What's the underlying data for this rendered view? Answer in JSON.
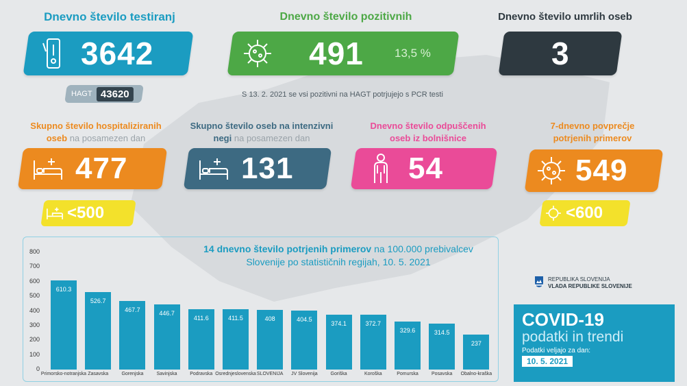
{
  "colors": {
    "blue": "#1b9cc1",
    "green": "#4da846",
    "dark": "#2e3940",
    "orange": "#ec8a1f",
    "slate": "#3d6a82",
    "pink": "#ea4b98",
    "yellow": "#f3e12b",
    "grey_pill": "#9fb2bd"
  },
  "testing": {
    "title": "Dnevno število testiranj",
    "value": "3642",
    "hagt_label": "HAGT",
    "hagt_value": "43620",
    "icon": "test-tube-icon"
  },
  "positive": {
    "title": "Dnevno število pozitivnih",
    "value": "491",
    "percent": "13,5 %",
    "icon": "virus-icon",
    "note": "S 13. 2. 2021 se vsi pozitivni na HAGT potrjujejo s PCR testi"
  },
  "deaths": {
    "title": "Dnevno število umrlih oseb",
    "value": "3"
  },
  "hospitalized": {
    "title_bold": "Skupno število hospitaliziranih oseb",
    "title_light": "na posamezen dan",
    "value": "477",
    "threshold": "<500",
    "icon": "hospital-bed-icon"
  },
  "icu": {
    "title_bold": "Skupno število oseb na intenzivni negi",
    "title_light": "na posamezen dan",
    "value": "131",
    "icon": "hospital-bed-icon"
  },
  "discharged": {
    "title": "Dnevno število odpuščenih oseb iz bolnišnice",
    "value": "54",
    "icon": "person-icon"
  },
  "avg7": {
    "title": "7-dnevno povprečje potrjenih primerov",
    "value": "549",
    "threshold": "<600",
    "icon": "virus-icon"
  },
  "chart_data": {
    "type": "bar",
    "title_bold": "14 dnevno število potrjenih primerov",
    "title_rest": "na 100.000 prebivalcev Slovenije po statističnih regijah, 10. 5. 2021",
    "ylim": [
      0,
      800
    ],
    "yticks": [
      "0",
      "100",
      "200",
      "300",
      "400",
      "500",
      "600",
      "700",
      "800"
    ],
    "categories": [
      "Primorsko-notranjska",
      "Zasavska",
      "Gorenjska",
      "Savinjska",
      "Podravska",
      "Osrednjeslovenska",
      "SLOVENIJA",
      "JV Slovenija",
      "Goriška",
      "Koroška",
      "Pomurska",
      "Posavska",
      "Obalno-kraška"
    ],
    "values": [
      610.3,
      526.7,
      467.7,
      446.7,
      411.6,
      411.5,
      408,
      404.5,
      374.1,
      372.7,
      329.6,
      314.5,
      237
    ],
    "value_labels": [
      "610.3",
      "526.7",
      "467.7",
      "446.7",
      "411.6",
      "411.5",
      "408",
      "404.5",
      "374.1",
      "372.7",
      "329.6",
      "314.5",
      "237"
    ]
  },
  "logo": {
    "line1": "REPUBLIKA SLOVENIJA",
    "line2": "VLADA REPUBLIKE SLOVENIJE",
    "icon": "coat-of-arms-icon"
  },
  "footer": {
    "title": "COVID-19",
    "subtitle": "podatki in trendi",
    "valid_label": "Podatki veljajo za dan:",
    "date": "10. 5. 2021"
  }
}
